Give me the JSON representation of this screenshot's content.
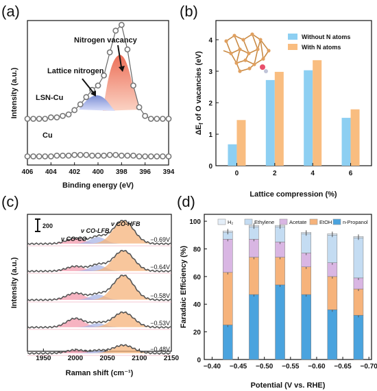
{
  "chart_data": [
    {
      "panel": "(a)",
      "type": "line",
      "xlabel": "Binding energy (eV)",
      "ylabel": "Intensity (a.u.)",
      "xticks": [
        406,
        404,
        402,
        400,
        398,
        396,
        394
      ],
      "xlim": [
        406,
        394
      ],
      "series": [
        {
          "name": "LSN-Cu",
          "x": [
            406,
            405.5,
            405,
            404.5,
            404,
            403.5,
            403,
            402.5,
            402,
            401.5,
            401,
            400.5,
            400,
            399.5,
            399,
            398.5,
            398,
            397.5,
            397,
            396.5,
            396,
            395.5,
            395,
            394.5,
            394
          ],
          "y": [
            0.32,
            0.32,
            0.32,
            0.32,
            0.33,
            0.33,
            0.34,
            0.35,
            0.38,
            0.42,
            0.47,
            0.52,
            0.55,
            0.62,
            0.78,
            0.93,
            0.97,
            0.8,
            0.55,
            0.4,
            0.34,
            0.32,
            0.32,
            0.32,
            0.32
          ]
        },
        {
          "name": "Cu",
          "x": [
            406,
            405.5,
            405,
            404.5,
            404,
            403.5,
            403,
            402.5,
            402,
            401.5,
            401,
            400.5,
            400,
            399.5,
            399,
            398.5,
            398,
            397.5,
            397,
            396.5,
            396,
            395.5,
            395,
            394.5,
            394
          ],
          "y": [
            0.06,
            0.06,
            0.06,
            0.06,
            0.06,
            0.065,
            0.065,
            0.065,
            0.07,
            0.07,
            0.07,
            0.065,
            0.065,
            0.065,
            0.07,
            0.07,
            0.065,
            0.065,
            0.065,
            0.06,
            0.06,
            0.06,
            0.06,
            0.06,
            0.06
          ]
        }
      ],
      "annotations": [
        "Nitrogen vacancy",
        "Lattice nitrogen"
      ]
    },
    {
      "panel": "(b)",
      "type": "bar",
      "xlabel": "Lattice compression (%)",
      "ylabel": "ΔEf of O vacancies (eV)",
      "ylabel_main": "ΔE",
      "ylabel_sub": "f",
      "ylabel_rest": " of O vacancies (eV)",
      "categories": [
        "0",
        "2",
        "4",
        "6"
      ],
      "ylim": [
        0,
        4
      ],
      "yticks": [
        0,
        1,
        2,
        3,
        4
      ],
      "legend": "top-right",
      "series": [
        {
          "name": "Without N atoms",
          "color": "#8dcff2",
          "values": [
            0.68,
            2.72,
            3.03,
            1.52
          ]
        },
        {
          "name": "With N atoms",
          "color": "#f9bd80",
          "values": [
            1.45,
            2.98,
            3.35,
            1.79
          ]
        }
      ]
    },
    {
      "panel": "(c)",
      "type": "line",
      "xlabel": "Raman shift (cm⁻¹)",
      "ylabel": "Intensity (a.u.)",
      "xlim": [
        1925,
        2150
      ],
      "xticks": [
        1950,
        2000,
        2050,
        2100,
        2150
      ],
      "scale_bar": "200",
      "annotations": [
        "ν CO-CO",
        "ν CO-LFB",
        "ν CO-HFB"
      ],
      "series": [
        {
          "name": "-0.69V",
          "label": "−0.69V"
        },
        {
          "name": "-0.64V",
          "label": "−0.64V"
        },
        {
          "name": "-0.58V",
          "label": "−0.58V"
        },
        {
          "name": "-0.53V",
          "label": "−0.53V"
        },
        {
          "name": "-0.48V",
          "label": "−0.48V"
        }
      ]
    },
    {
      "panel": "(d)",
      "type": "bar",
      "stacked": true,
      "xlabel": "Potential (V vs. RHE)",
      "ylabel": "Faradaic Efficiency (%)",
      "ylim": [
        0,
        105
      ],
      "yticks": [
        0,
        20,
        40,
        60,
        80,
        100
      ],
      "xticks": [
        "−0.40",
        "−0.45",
        "−0.50",
        "−0.55",
        "−0.60",
        "−0.65",
        "−0.70"
      ],
      "categories": [
        "−0.43",
        "−0.48",
        "−0.53",
        "−0.58",
        "−0.63",
        "−0.68"
      ],
      "legend": "top",
      "series": [
        {
          "name": "n-Propanol",
          "color": "#4aa3de",
          "values": [
            25,
            47,
            54,
            47,
            36,
            32
          ]
        },
        {
          "name": "EtOH",
          "color": "#f6b37b",
          "values": [
            38,
            27,
            20,
            20,
            24,
            19
          ]
        },
        {
          "name": "Acetate",
          "color": "#d9b6e3",
          "values": [
            24,
            13,
            11,
            10,
            10,
            8
          ]
        },
        {
          "name": "Ethylene",
          "color": "#c4dcf2",
          "values": [
            5,
            9,
            11,
            14,
            20,
            29
          ]
        },
        {
          "name": "H₂",
          "color": "#e4eef8",
          "values": [
            1,
            1,
            1,
            1,
            1,
            1
          ]
        }
      ]
    }
  ]
}
